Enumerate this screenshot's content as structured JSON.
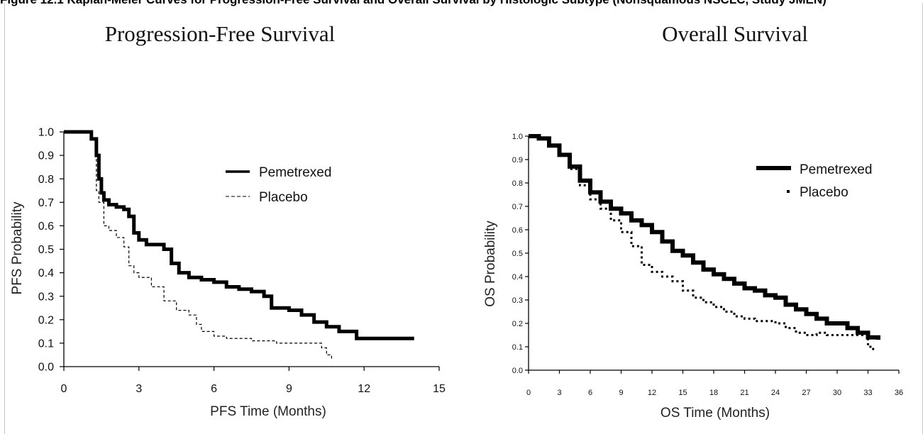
{
  "header_text": "Figure 12.1 Kaplan-Meier Curves for Progression-Free Survival and Overall Survival by Histologic Subtype (Nonsquamous NSCLC, Study JMEN)",
  "chart_data": [
    {
      "type": "line",
      "title": "Progression-Free Survival",
      "xlabel": "PFS Time (Months)",
      "ylabel": "PFS Probability",
      "xlim": [
        0,
        15
      ],
      "ylim": [
        0,
        1
      ],
      "xticks": [
        "0",
        "3",
        "6",
        "9",
        "12",
        "15"
      ],
      "yticks": [
        "0.0",
        "0.1",
        "0.2",
        "0.3",
        "0.4",
        "0.5",
        "0.6",
        "0.7",
        "0.8",
        "0.9",
        "1.0"
      ],
      "legend_position": "top-right",
      "grid": false,
      "series": [
        {
          "name": "Pemetrexed",
          "style": "solid-thick",
          "x": [
            0,
            0.9,
            1.1,
            1.3,
            1.4,
            1.5,
            1.6,
            1.8,
            2.1,
            2.4,
            2.6,
            2.8,
            3.0,
            3.3,
            3.7,
            4.0,
            4.3,
            4.6,
            5.0,
            5.5,
            6.0,
            6.5,
            7.0,
            7.5,
            8.0,
            8.3,
            9.0,
            9.5,
            10.0,
            10.5,
            11.0,
            11.7,
            12.5,
            14.0
          ],
          "y": [
            1.0,
            1.0,
            0.97,
            0.9,
            0.8,
            0.74,
            0.71,
            0.69,
            0.68,
            0.67,
            0.64,
            0.57,
            0.54,
            0.52,
            0.52,
            0.5,
            0.44,
            0.4,
            0.38,
            0.37,
            0.36,
            0.34,
            0.33,
            0.32,
            0.3,
            0.25,
            0.24,
            0.22,
            0.19,
            0.17,
            0.15,
            0.12,
            0.12,
            0.12
          ]
        },
        {
          "name": "Placebo",
          "style": "dashed-thin",
          "x": [
            0,
            0.9,
            1.1,
            1.3,
            1.4,
            1.6,
            1.8,
            2.1,
            2.4,
            2.6,
            2.8,
            3.0,
            3.5,
            4.0,
            4.5,
            5.0,
            5.3,
            5.5,
            6.0,
            6.5,
            7.0,
            7.5,
            8.0,
            8.5,
            9.0,
            10.0,
            10.3,
            10.5,
            10.7
          ],
          "y": [
            1.0,
            1.0,
            0.97,
            0.75,
            0.7,
            0.6,
            0.58,
            0.55,
            0.51,
            0.43,
            0.4,
            0.38,
            0.34,
            0.28,
            0.24,
            0.22,
            0.18,
            0.15,
            0.13,
            0.12,
            0.12,
            0.11,
            0.11,
            0.1,
            0.1,
            0.1,
            0.08,
            0.05,
            0.03
          ]
        }
      ]
    },
    {
      "type": "line",
      "title": "Overall Survival",
      "xlabel": "OS Time (Months)",
      "ylabel": "OS Probability",
      "xlim": [
        0,
        36
      ],
      "ylim": [
        0,
        1
      ],
      "xticks": [
        "0",
        "3",
        "6",
        "9",
        "12",
        "15",
        "18",
        "21",
        "24",
        "27",
        "30",
        "33",
        "36"
      ],
      "yticks": [
        "0.0",
        "0.1",
        "0.2",
        "0.3",
        "0.4",
        "0.5",
        "0.6",
        "0.7",
        "0.8",
        "0.9",
        "1.0"
      ],
      "legend_position": "top-right",
      "grid": false,
      "series": [
        {
          "name": "Pemetrexed",
          "style": "solid-thick",
          "x": [
            0,
            1,
            2,
            3,
            4,
            5,
            6,
            7,
            8,
            9,
            10,
            11,
            12,
            13,
            14,
            15,
            16,
            17,
            18,
            19,
            20,
            21,
            22,
            23,
            24,
            25,
            26,
            27,
            28,
            29,
            30,
            31,
            32,
            33,
            34
          ],
          "y": [
            1.0,
            0.99,
            0.96,
            0.92,
            0.87,
            0.81,
            0.76,
            0.72,
            0.69,
            0.67,
            0.64,
            0.62,
            0.59,
            0.55,
            0.51,
            0.49,
            0.46,
            0.43,
            0.41,
            0.39,
            0.37,
            0.35,
            0.34,
            0.32,
            0.31,
            0.28,
            0.26,
            0.24,
            0.22,
            0.2,
            0.2,
            0.18,
            0.16,
            0.14,
            0.13
          ]
        },
        {
          "name": "Placebo",
          "style": "dotted",
          "x": [
            0,
            1,
            2,
            3,
            4,
            5,
            6,
            7,
            8,
            9,
            10,
            11,
            12,
            13,
            14,
            15,
            16,
            17,
            18,
            19,
            20,
            21,
            22,
            23,
            24,
            25,
            26,
            27,
            28,
            29,
            30,
            31,
            32,
            33,
            33.5
          ],
          "y": [
            1.0,
            0.99,
            0.96,
            0.92,
            0.86,
            0.79,
            0.73,
            0.69,
            0.64,
            0.59,
            0.53,
            0.45,
            0.42,
            0.4,
            0.38,
            0.34,
            0.31,
            0.29,
            0.27,
            0.25,
            0.23,
            0.22,
            0.21,
            0.21,
            0.2,
            0.18,
            0.16,
            0.15,
            0.16,
            0.15,
            0.15,
            0.15,
            0.15,
            0.1,
            0.08
          ]
        }
      ]
    }
  ]
}
